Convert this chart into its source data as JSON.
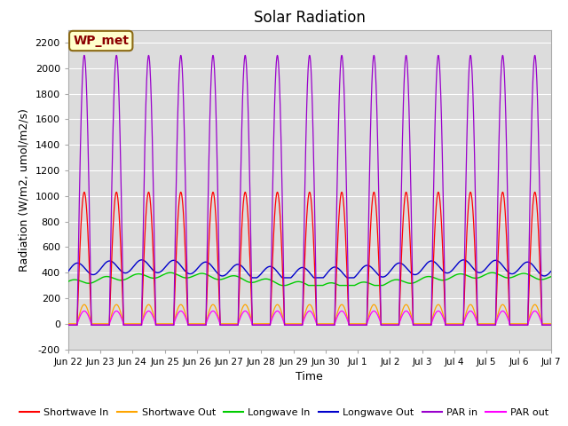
{
  "title": "Solar Radiation",
  "ylabel": "Radiation (W/m2, umol/m2/s)",
  "xlabel": "Time",
  "ylim": [
    -200,
    2300
  ],
  "yticks": [
    -200,
    0,
    200,
    400,
    600,
    800,
    1000,
    1200,
    1400,
    1600,
    1800,
    2000,
    2200
  ],
  "x_tick_labels": [
    "Jun 22",
    "Jun 23",
    "Jun 24",
    "Jun 25",
    "Jun 26",
    "Jun 27",
    "Jun 28",
    "Jun 29",
    "Jun 30",
    "Jul 1",
    "Jul 2",
    "Jul 3",
    "Jul 4",
    "Jul 5",
    "Jul 6",
    "Jul 7"
  ],
  "num_days": 15,
  "background_color": "#dcdcdc",
  "annotation_text": "WP_met",
  "annotation_bg": "#ffffcc",
  "annotation_border": "#8b6914",
  "annotation_text_color": "#8b0000",
  "series": {
    "shortwave_in": {
      "color": "#ff0000",
      "label": "Shortwave In",
      "peak": 1030,
      "base": -10
    },
    "shortwave_out": {
      "color": "#ffa500",
      "label": "Shortwave Out",
      "peak": 150,
      "base": 0
    },
    "longwave_in": {
      "color": "#00cc00",
      "label": "Longwave In",
      "peak": 420,
      "base": 310
    },
    "longwave_out": {
      "color": "#0000cc",
      "label": "Longwave Out",
      "peak": 500,
      "base": 370
    },
    "par_in": {
      "color": "#9900cc",
      "label": "PAR in",
      "peak": 2100,
      "base": -10
    },
    "par_out": {
      "color": "#ff00ff",
      "label": "PAR out",
      "peak": 100,
      "base": -10
    }
  },
  "legend_order": [
    "shortwave_in",
    "shortwave_out",
    "longwave_in",
    "longwave_out",
    "par_in",
    "par_out"
  ]
}
